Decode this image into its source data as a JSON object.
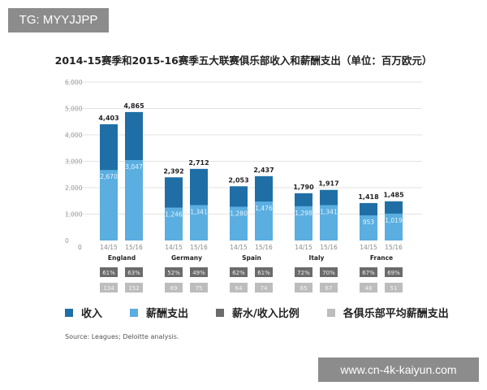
{
  "watermarks": {
    "top_left": "TG: MYYJJPP",
    "bottom_right": "www.cn-4k-kaiyun.com"
  },
  "chart_data": {
    "type": "bar",
    "title": "2014-15赛季和2015-16赛季五大联赛俱乐部收入和薪酬支出（单位：百万欧元）",
    "categories": [
      "England",
      "Germany",
      "Spain",
      "Italy",
      "France"
    ],
    "seasons": [
      "14/15",
      "15/16"
    ],
    "ylim": [
      0,
      6000
    ],
    "yticks": [
      "0",
      "1,000",
      "2,000",
      "3,000",
      "4,000",
      "5,000",
      "6,000"
    ],
    "grid": true,
    "legend_position": "bottom",
    "series": [
      {
        "name": "收入",
        "color": "#1f6fa6",
        "values": [
          [
            4403,
            4865
          ],
          [
            2392,
            2712
          ],
          [
            2053,
            2437
          ],
          [
            1790,
            1917
          ],
          [
            1418,
            1485
          ]
        ],
        "labels": [
          [
            "4,403",
            "4,865"
          ],
          [
            "2,392",
            "2,712"
          ],
          [
            "2,053",
            "2,437"
          ],
          [
            "1,790",
            "1,917"
          ],
          [
            "1,418",
            "1,485"
          ]
        ]
      },
      {
        "name": "薪酬支出",
        "color": "#5aaee0",
        "values": [
          [
            2670,
            3047
          ],
          [
            1246,
            1341
          ],
          [
            1280,
            1476
          ],
          [
            1298,
            1341
          ],
          [
            953,
            1019
          ]
        ],
        "labels": [
          [
            "2,670",
            "3,047"
          ],
          [
            "1,246",
            "1,341"
          ],
          [
            "1,280",
            "1,476"
          ],
          [
            "1,298",
            "1,341"
          ],
          [
            "953",
            "1,019"
          ]
        ]
      },
      {
        "name": "薪水/收入比例",
        "color": "#6b6b6b",
        "values": [
          [
            "61%",
            "63%"
          ],
          [
            "52%",
            "49%"
          ],
          [
            "62%",
            "61%"
          ],
          [
            "72%",
            "70%"
          ],
          [
            "67%",
            "69%"
          ]
        ]
      },
      {
        "name": "各俱乐部平均薪酬支出",
        "color": "#bdbdbd",
        "values": [
          [
            "134",
            "152"
          ],
          [
            "69",
            "75"
          ],
          [
            "64",
            "74"
          ],
          [
            "65",
            "67"
          ],
          [
            "48",
            "51"
          ]
        ]
      }
    ],
    "source": "Source: Leagues; Deloitte analysis."
  }
}
